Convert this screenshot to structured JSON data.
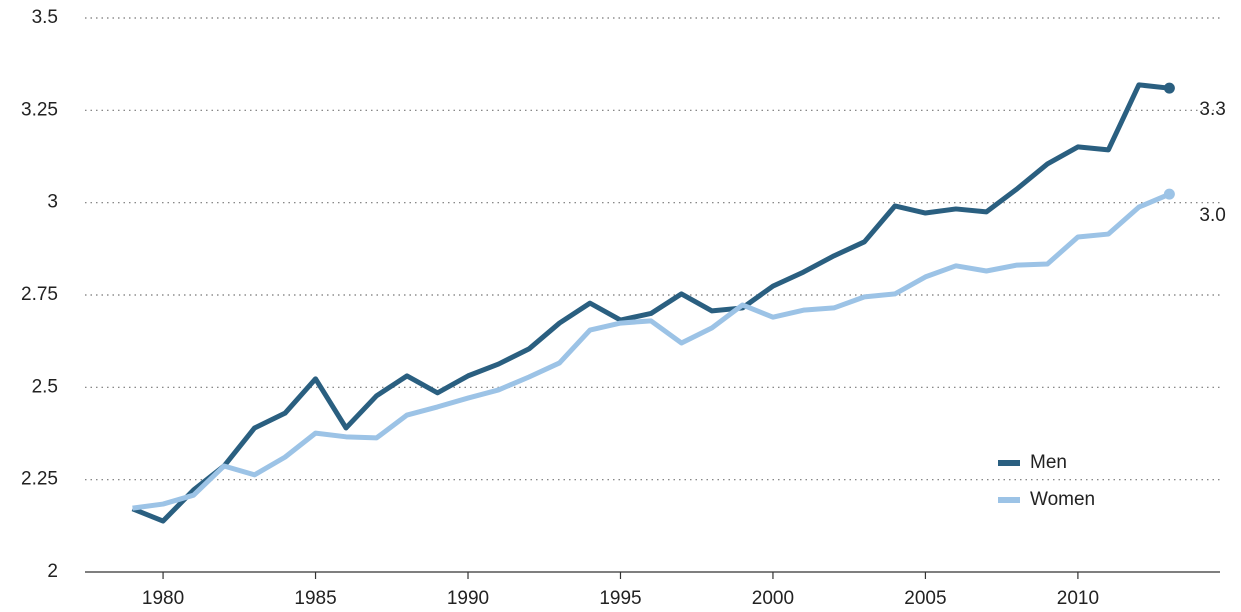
{
  "chart_data": {
    "type": "line",
    "x": [
      1979,
      1980,
      1981,
      1982,
      1983,
      1984,
      1985,
      1986,
      1987,
      1988,
      1989,
      1990,
      1991,
      1992,
      1993,
      1994,
      1995,
      1996,
      1997,
      1998,
      1999,
      2000,
      2001,
      2002,
      2003,
      2004,
      2005,
      2006,
      2007,
      2008,
      2009,
      2010,
      2011,
      2012,
      2013
    ],
    "series": [
      {
        "name": "Men",
        "color": "#2a5f80",
        "values": [
          2.171,
          2.138,
          2.222,
          2.287,
          2.39,
          2.43,
          2.523,
          2.39,
          2.477,
          2.531,
          2.485,
          2.531,
          2.563,
          2.604,
          2.674,
          2.728,
          2.682,
          2.7,
          2.753,
          2.707,
          2.715,
          2.774,
          2.812,
          2.856,
          2.894,
          2.991,
          2.972,
          2.983,
          2.975,
          3.037,
          3.105,
          3.151,
          3.143,
          3.319,
          3.31
        ],
        "value_labels": [
          null,
          null,
          null,
          null,
          null,
          null,
          null,
          null,
          null,
          null,
          null,
          null,
          null,
          null,
          null,
          null,
          null,
          null,
          null,
          null,
          null,
          null,
          null,
          null,
          null,
          null,
          null,
          null,
          null,
          null,
          null,
          null,
          null,
          null,
          "3.3"
        ]
      },
      {
        "name": "Women",
        "color": "#9cc3e6",
        "values": [
          2.173,
          2.184,
          2.208,
          2.287,
          2.263,
          2.311,
          2.376,
          2.366,
          2.363,
          2.425,
          2.447,
          2.471,
          2.493,
          2.528,
          2.566,
          2.655,
          2.674,
          2.68,
          2.62,
          2.661,
          2.723,
          2.69,
          2.709,
          2.715,
          2.745,
          2.753,
          2.799,
          2.829,
          2.815,
          2.831,
          2.834,
          2.907,
          2.915,
          2.988,
          3.023
        ],
        "value_labels": [
          null,
          null,
          null,
          null,
          null,
          null,
          null,
          null,
          null,
          null,
          null,
          null,
          null,
          null,
          null,
          null,
          null,
          null,
          null,
          null,
          null,
          null,
          null,
          null,
          null,
          null,
          null,
          null,
          null,
          null,
          null,
          null,
          null,
          null,
          "3.0"
        ]
      }
    ],
    "xlim": [
      1977.44,
      2014.66
    ],
    "xticks": [
      1980,
      1985,
      1990,
      1995,
      2000,
      2005,
      2010
    ],
    "ylim": [
      2,
      3.5
    ],
    "yticks": [
      2,
      2.25,
      2.5,
      2.75,
      3,
      3.25,
      3.5
    ],
    "grid": true,
    "legend": "lower right"
  }
}
